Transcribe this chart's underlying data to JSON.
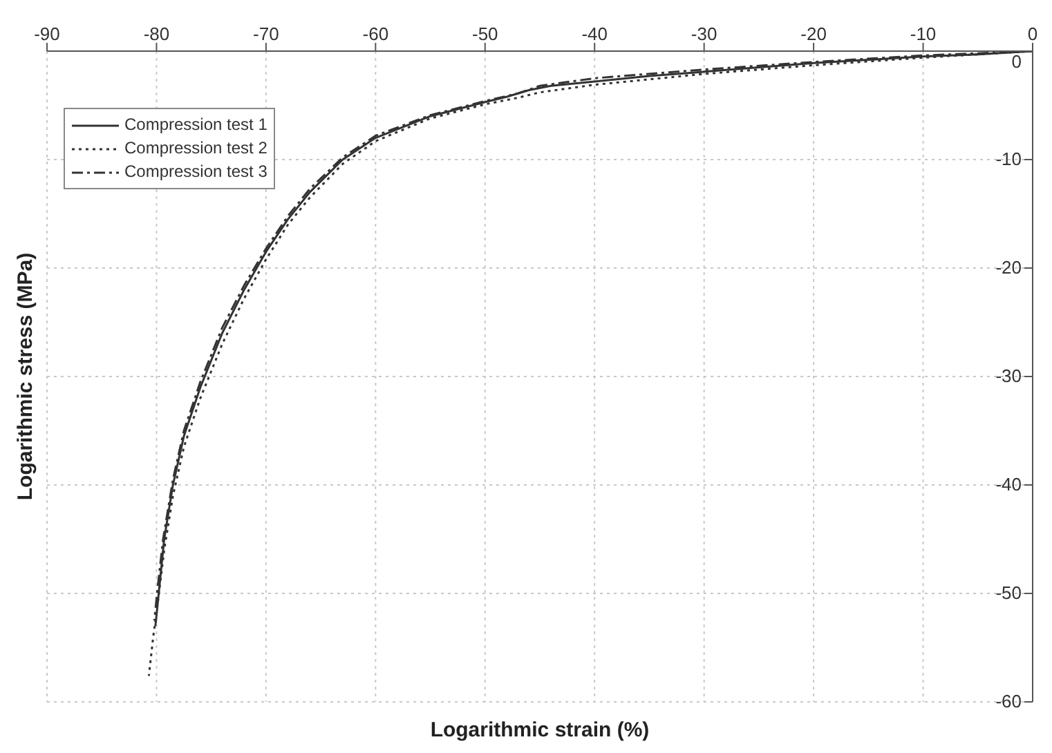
{
  "chart_data": {
    "type": "line",
    "xlabel": "Logarithmic strain (%)",
    "ylabel": "Logarithmic stress (MPa)",
    "xlim": [
      -90,
      0
    ],
    "xticks": [
      -90,
      -80,
      -70,
      -60,
      -50,
      -40,
      -30,
      -20,
      -10,
      0
    ],
    "ylim": [
      -60,
      0
    ],
    "yticks": [
      -60,
      -50,
      -40,
      -30,
      -20,
      -10,
      0
    ],
    "grid": true,
    "legend": "top left",
    "marker": "none",
    "series": [
      {
        "name": "Compression test 1",
        "color": "#333333",
        "line_style": "solid",
        "x": [
          0,
          -5,
          -10,
          -15,
          -20,
          -25,
          -30,
          -35,
          -40,
          -44,
          -46,
          -48,
          -50,
          -55,
          -60,
          -63,
          -66,
          -68,
          -70,
          -72,
          -74,
          -76,
          -77.5,
          -78.5,
          -79.3,
          -79.8,
          -80.1
        ],
        "values": [
          0,
          -0.3,
          -0.5,
          -0.8,
          -1.1,
          -1.5,
          -1.9,
          -2.3,
          -2.8,
          -3.2,
          -3.6,
          -4.2,
          -4.7,
          -6,
          -8,
          -10,
          -13,
          -15.5,
          -18.5,
          -22,
          -26,
          -31,
          -35.5,
          -40,
          -45,
          -50,
          -53
        ]
      },
      {
        "name": "Compression test 2",
        "color": "#333333",
        "line_style": "dotted",
        "x": [
          0,
          -10,
          -20,
          -30,
          -40,
          -45,
          -47,
          -50,
          -55,
          -60,
          -63,
          -66,
          -68,
          -70,
          -72,
          -74,
          -76,
          -77.5,
          -78.5,
          -79.3,
          -79.9,
          -80.3,
          -80.7
        ],
        "values": [
          0,
          -0.6,
          -1.3,
          -2.1,
          -3.1,
          -3.8,
          -4.3,
          -4.9,
          -6.2,
          -8.3,
          -10.4,
          -13.5,
          -16,
          -19.2,
          -22.8,
          -27,
          -32,
          -36.5,
          -41,
          -46,
          -51,
          -54,
          -57.6
        ]
      },
      {
        "name": "Compression test 3",
        "color": "#333333",
        "line_style": "dashdot",
        "x": [
          0,
          -10,
          -20,
          -30,
          -40,
          -45,
          -47,
          -50,
          -55,
          -60,
          -63,
          -66,
          -68,
          -70,
          -72,
          -74,
          -76,
          -77.5,
          -78.5,
          -79.4,
          -79.9,
          -80.2
        ],
        "values": [
          0,
          -0.4,
          -1,
          -1.7,
          -2.5,
          -3.2,
          -3.9,
          -4.6,
          -5.9,
          -7.8,
          -9.8,
          -12.7,
          -15.2,
          -18.2,
          -21.6,
          -25.5,
          -30.5,
          -35,
          -39.5,
          -45,
          -49.5,
          -52.5
        ]
      }
    ]
  }
}
